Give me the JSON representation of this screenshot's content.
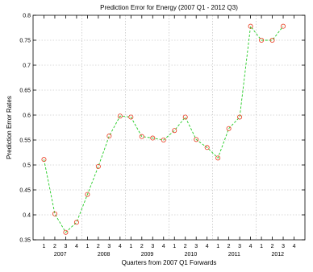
{
  "chart_data": {
    "type": "line",
    "title": "Prediction Error for Energy (2007 Q1 - 2012 Q3)",
    "xlabel": "Quarters from 2007 Q1 Forwards",
    "ylabel": "Prediction Error Rates",
    "ylim": [
      0.35,
      0.8
    ],
    "y_ticks": [
      "0.35",
      "0.4",
      "0.45",
      "0.5",
      "0.55",
      "0.6",
      "0.65",
      "0.7",
      "0.75",
      "0.8"
    ],
    "x_tick_labels": [
      "1",
      "2",
      "3",
      "4",
      "1",
      "2",
      "3",
      "4",
      "1",
      "2",
      "3",
      "4",
      "1",
      "2",
      "3",
      "4",
      "1",
      "2",
      "3",
      "4",
      "1",
      "2",
      "3",
      "4"
    ],
    "year_labels": [
      "2007",
      "2008",
      "2009",
      "2010",
      "2011",
      "2012"
    ],
    "grid": true,
    "series": [
      {
        "line_color": "#22cc22",
        "marker_color": "#e83a1e",
        "values": [
          0.511,
          0.402,
          0.365,
          0.385,
          0.441,
          0.497,
          0.558,
          0.598,
          0.596,
          0.557,
          0.554,
          0.55,
          0.569,
          0.596,
          0.551,
          0.535,
          0.514,
          0.573,
          0.596,
          0.778,
          0.75,
          0.75,
          0.778
        ]
      }
    ]
  }
}
